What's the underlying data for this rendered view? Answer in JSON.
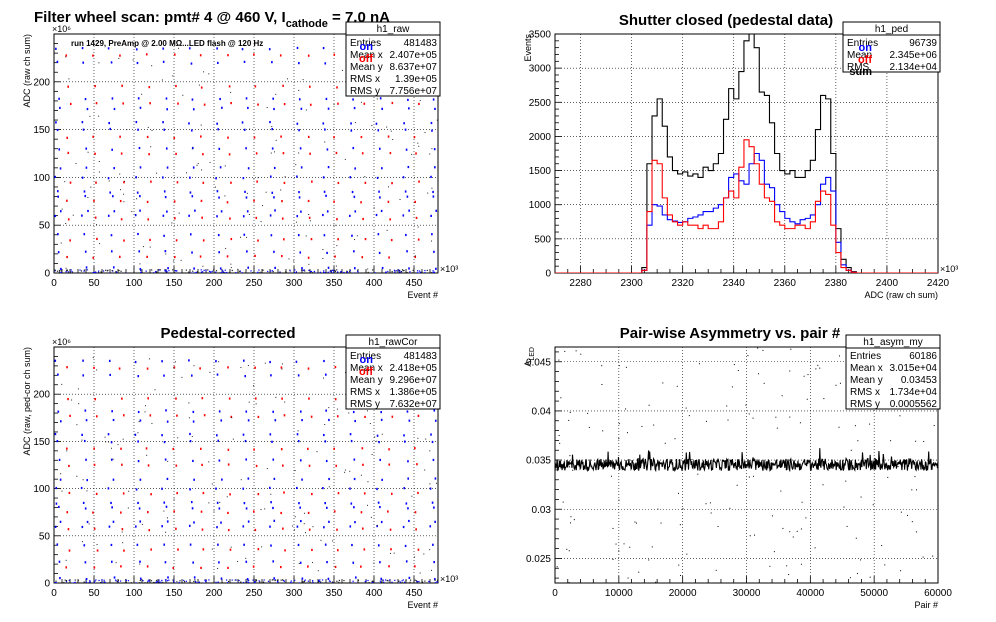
{
  "chart_data": [
    {
      "id": "raw",
      "type": "scatter",
      "title": "Filter wheel scan: pmt#   4 @   460 V, I",
      "title_sub": "cathode",
      "title_tail": " = 7.0 nA",
      "xlabel": "Event #",
      "ylabel": "ADC (raw ch sum)",
      "x_exponent": "×10³",
      "y_exponent": "×10⁶",
      "xlim": [
        0,
        480
      ],
      "ylim": [
        0,
        250
      ],
      "x_ticks": [
        0,
        50,
        100,
        150,
        200,
        250,
        300,
        350,
        400,
        450
      ],
      "y_ticks": [
        0,
        50,
        100,
        150,
        200
      ],
      "grid": true,
      "annotation": "run 1429, PreAmp @ 2.00 MΩ...LED flash @  120 Hz",
      "legend": [
        {
          "name": "on",
          "color": "#0000ff"
        },
        {
          "name": "off",
          "color": "#ff0000"
        }
      ],
      "stats": {
        "name": "h1_raw",
        "rows": [
          [
            "Entries",
            "481483"
          ],
          [
            "Mean x",
            "2.407e+05"
          ],
          [
            "Mean y",
            "8.637e+07"
          ],
          [
            "RMS x",
            "1.39e+05"
          ],
          [
            "RMS y",
            "7.756e+07"
          ]
        ]
      },
      "on_levels": [
        235,
        220,
        182,
        172,
        157,
        150,
        130,
        110,
        100,
        85,
        80,
        65,
        60,
        40,
        22,
        5
      ],
      "off_levels": [
        228,
        195,
        177,
        142,
        125,
        95,
        75,
        57,
        35,
        17
      ]
    },
    {
      "id": "ped",
      "type": "histogram",
      "title": "Shutter closed (pedestal data)",
      "xlabel": "ADC (raw ch sum)",
      "ylabel": "Events",
      "x_exponent": "×10³",
      "xlim": [
        2270,
        2420
      ],
      "ylim": [
        0,
        3500
      ],
      "x_ticks": [
        2280,
        2300,
        2320,
        2340,
        2360,
        2380,
        2400,
        2420
      ],
      "y_ticks": [
        0,
        500,
        1000,
        1500,
        2000,
        2500,
        3000,
        3500
      ],
      "grid": true,
      "legend": [
        {
          "name": "on",
          "color": "#0000ff"
        },
        {
          "name": "off",
          "color": "#ff0000"
        },
        {
          "name": "sum",
          "color": "#000000"
        }
      ],
      "stats": {
        "name": "h1_ped",
        "rows": [
          [
            "Entries",
            "96739"
          ],
          [
            "Mean",
            "2.345e+06"
          ],
          [
            "RMS",
            "2.134e+04"
          ]
        ]
      },
      "series": [
        {
          "name": "sum",
          "color": "#000000",
          "x": [
            2300,
            2304,
            2306,
            2308,
            2310,
            2312,
            2314,
            2316,
            2318,
            2320,
            2322,
            2324,
            2326,
            2328,
            2330,
            2332,
            2334,
            2336,
            2338,
            2340,
            2342,
            2344,
            2346,
            2348,
            2350,
            2352,
            2354,
            2356,
            2358,
            2360,
            2362,
            2364,
            2366,
            2368,
            2370,
            2372,
            2374,
            2376,
            2378,
            2380,
            2382,
            2384,
            2386,
            2388
          ],
          "y": [
            0,
            80,
            1600,
            2300,
            2550,
            2150,
            1700,
            1500,
            1450,
            1480,
            1420,
            1450,
            1400,
            1550,
            1500,
            1600,
            1750,
            2250,
            2700,
            2550,
            2950,
            3400,
            3550,
            3300,
            2650,
            2600,
            2200,
            1750,
            1500,
            1450,
            1500,
            1400,
            1400,
            1500,
            1650,
            2100,
            2600,
            2550,
            1750,
            650,
            200,
            80,
            20,
            0
          ]
        },
        {
          "name": "on",
          "color": "#0000ff",
          "x": [
            2300,
            2304,
            2306,
            2308,
            2310,
            2312,
            2314,
            2316,
            2318,
            2320,
            2322,
            2324,
            2326,
            2328,
            2330,
            2332,
            2334,
            2336,
            2338,
            2340,
            2342,
            2344,
            2346,
            2348,
            2350,
            2352,
            2354,
            2356,
            2358,
            2360,
            2362,
            2364,
            2366,
            2368,
            2370,
            2372,
            2374,
            2376,
            2378,
            2380,
            2382,
            2384,
            2386,
            2388
          ],
          "y": [
            0,
            40,
            700,
            1000,
            980,
            850,
            780,
            760,
            740,
            750,
            800,
            820,
            850,
            900,
            900,
            950,
            1000,
            1100,
            1400,
            1450,
            1350,
            1300,
            1600,
            1750,
            1650,
            1300,
            1250,
            1000,
            900,
            800,
            750,
            720,
            780,
            800,
            850,
            1000,
            1300,
            1400,
            1200,
            450,
            120,
            40,
            10,
            0
          ]
        },
        {
          "name": "off",
          "color": "#ff0000",
          "x": [
            2300,
            2304,
            2306,
            2308,
            2310,
            2312,
            2314,
            2316,
            2318,
            2320,
            2322,
            2324,
            2326,
            2328,
            2330,
            2332,
            2334,
            2336,
            2338,
            2340,
            2342,
            2344,
            2346,
            2348,
            2350,
            2352,
            2354,
            2356,
            2358,
            2360,
            2362,
            2364,
            2366,
            2368,
            2370,
            2372,
            2374,
            2376,
            2378,
            2380,
            2382,
            2384,
            2386,
            2388
          ],
          "y": [
            0,
            40,
            900,
            1650,
            1600,
            1100,
            850,
            750,
            700,
            750,
            700,
            700,
            650,
            700,
            650,
            650,
            750,
            1100,
            1200,
            1100,
            1550,
            1950,
            1850,
            1600,
            1300,
            1100,
            1050,
            750,
            700,
            650,
            650,
            700,
            700,
            650,
            750,
            1050,
            1200,
            1150,
            700,
            300,
            80,
            40,
            10,
            0
          ]
        }
      ]
    },
    {
      "id": "rawcor",
      "type": "scatter",
      "title": "Pedestal-corrected",
      "xlabel": "Event #",
      "ylabel": "ADC (raw, ped-cor ch sum)",
      "x_exponent": "×10³",
      "y_exponent": "×10⁶",
      "xlim": [
        0,
        480
      ],
      "ylim": [
        0,
        250
      ],
      "x_ticks": [
        0,
        50,
        100,
        150,
        200,
        250,
        300,
        350,
        400,
        450
      ],
      "y_ticks": [
        0,
        50,
        100,
        150,
        200
      ],
      "grid": true,
      "legend": [
        {
          "name": "on",
          "color": "#0000ff"
        },
        {
          "name": "off",
          "color": "#ff0000"
        }
      ],
      "stats": {
        "name": "h1_rawCor",
        "rows": [
          [
            "Entries",
            "481483"
          ],
          [
            "Mean x",
            "2.418e+05"
          ],
          [
            "Mean y",
            "9.296e+07"
          ],
          [
            "RMS x",
            "1.386e+05"
          ],
          [
            "RMS y",
            "7.632e+07"
          ]
        ]
      },
      "on_levels": [
        235,
        220,
        182,
        172,
        157,
        150,
        130,
        110,
        100,
        85,
        80,
        65,
        60,
        40,
        22,
        5
      ],
      "off_levels": [
        228,
        195,
        177,
        142,
        125,
        95,
        75,
        57,
        35,
        17
      ]
    },
    {
      "id": "asym",
      "type": "scatter",
      "title": "Pair-wise Asymmetry vs. pair #",
      "xlabel": "Pair #",
      "ylabel": "A",
      "ylabel_sub": "LED",
      "xlim": [
        0,
        60000
      ],
      "ylim": [
        0.0225,
        0.0465
      ],
      "x_ticks": [
        0,
        10000,
        20000,
        30000,
        40000,
        50000,
        60000
      ],
      "y_ticks": [
        0.025,
        0.03,
        0.035,
        0.04,
        0.045
      ],
      "grid": true,
      "stats": {
        "name": "h1_asym_my",
        "rows": [
          [
            "Entries",
            "60186"
          ],
          [
            "Mean x",
            "3.015e+04"
          ],
          [
            "Mean y",
            "0.03453"
          ],
          [
            "RMS x",
            "1.734e+04"
          ],
          [
            "RMS y",
            "0.0005562"
          ]
        ]
      },
      "band_center": 0.03453,
      "band_rms": 0.0005562
    }
  ]
}
